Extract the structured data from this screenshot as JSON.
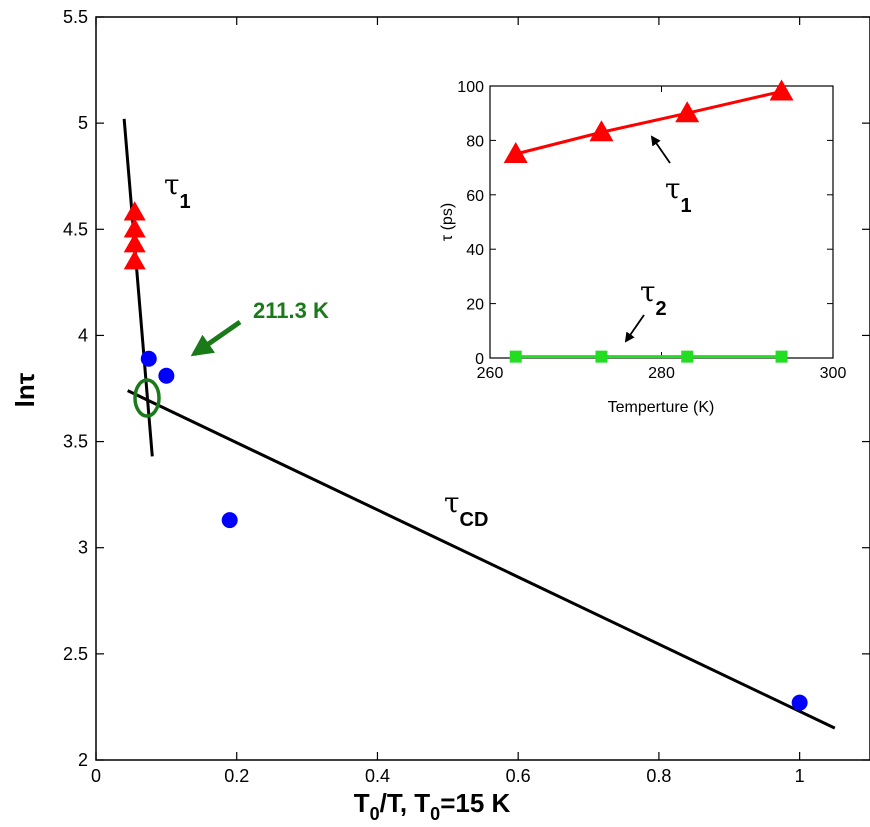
{
  "chart_data": [
    {
      "type": "scatter",
      "xlabel": "T0/T, T0=15 K",
      "xlabel_parts": {
        "t": "T",
        "sub0": "0",
        "rest1": "/T, T",
        "sub1": "0",
        "rest2": "=15 K"
      },
      "ylabel": "lnτ",
      "xlim": [
        0,
        1.1
      ],
      "ylim": [
        2,
        5.5
      ],
      "xticks": [
        "0",
        "0.2",
        "0.4",
        "0.6",
        "0.8",
        "1"
      ],
      "xtick_values": [
        0,
        0.2,
        0.4,
        0.6,
        0.8,
        1
      ],
      "yticks": [
        "2",
        "2.5",
        "3",
        "3.5",
        "4",
        "4.5",
        "5",
        "5.5"
      ],
      "ytick_values": [
        2,
        2.5,
        3,
        3.5,
        4,
        4.5,
        5,
        5.5
      ],
      "series": [
        {
          "marker": "triangle",
          "color": "#ff0000",
          "points": [
            [
              0.055,
              4.58
            ],
            [
              0.055,
              4.5
            ],
            [
              0.055,
              4.43
            ],
            [
              0.055,
              4.35
            ]
          ]
        },
        {
          "marker": "circle",
          "color": "#0000ff",
          "points": [
            [
              0.075,
              3.89
            ],
            [
              0.1,
              3.81
            ],
            [
              0.19,
              3.13
            ],
            [
              1.0,
              2.27
            ]
          ]
        },
        {
          "marker": "line",
          "color": "#000000",
          "label": "τ1",
          "points": [
            [
              0.04,
              5.02
            ],
            [
              0.08,
              3.43
            ]
          ]
        },
        {
          "marker": "line",
          "color": "#000000",
          "label": "τCD",
          "points": [
            [
              0.045,
              3.74
            ],
            [
              1.05,
              2.15
            ]
          ]
        }
      ],
      "annotations": [
        {
          "text": "τ1",
          "main": "τ",
          "sub": "1",
          "at": [
            0.13,
            4.67
          ]
        },
        {
          "text": "τCD",
          "main": "τ",
          "sub": "CD",
          "at": [
            0.55,
            3.12
          ]
        },
        {
          "text": "211.3 K",
          "color": "#1a7a1a",
          "at": [
            0.22,
            4.07
          ],
          "arrow_to": [
            0.14,
            3.87
          ]
        },
        {
          "marker": "ellipse",
          "color": "#1a7a1a",
          "at": [
            0.072,
            3.69
          ]
        }
      ],
      "grid": false
    },
    {
      "type": "line",
      "title": "",
      "xlabel": "Temperture (K)",
      "ylabel": "τ (ps)",
      "xlim": [
        260,
        300
      ],
      "ylim": [
        0,
        100
      ],
      "xticks": [
        "260",
        "280",
        "300"
      ],
      "xtick_values": [
        260,
        280,
        300
      ],
      "yticks": [
        "0",
        "20",
        "40",
        "60",
        "80",
        "100"
      ],
      "ytick_values": [
        0,
        20,
        40,
        60,
        80,
        100
      ],
      "series": [
        {
          "color": "#ff0000",
          "marker": "triangle",
          "x": [
            263,
            273,
            283,
            294
          ],
          "y": [
            75,
            83,
            90,
            98
          ]
        },
        {
          "color": "#22dd22",
          "marker": "square",
          "x": [
            263,
            273,
            283,
            294
          ],
          "y": [
            0.5,
            0.5,
            0.5,
            0.5
          ]
        }
      ],
      "annotations": [
        {
          "text": "τ1",
          "main": "τ",
          "sub": "1",
          "at": [
            285,
            57
          ],
          "arrow_to": [
            275,
            74
          ]
        },
        {
          "text": "τ2",
          "main": "τ",
          "sub": "2",
          "at": [
            280,
            19
          ],
          "arrow_to": [
            274,
            5
          ]
        }
      ],
      "grid": false
    }
  ]
}
